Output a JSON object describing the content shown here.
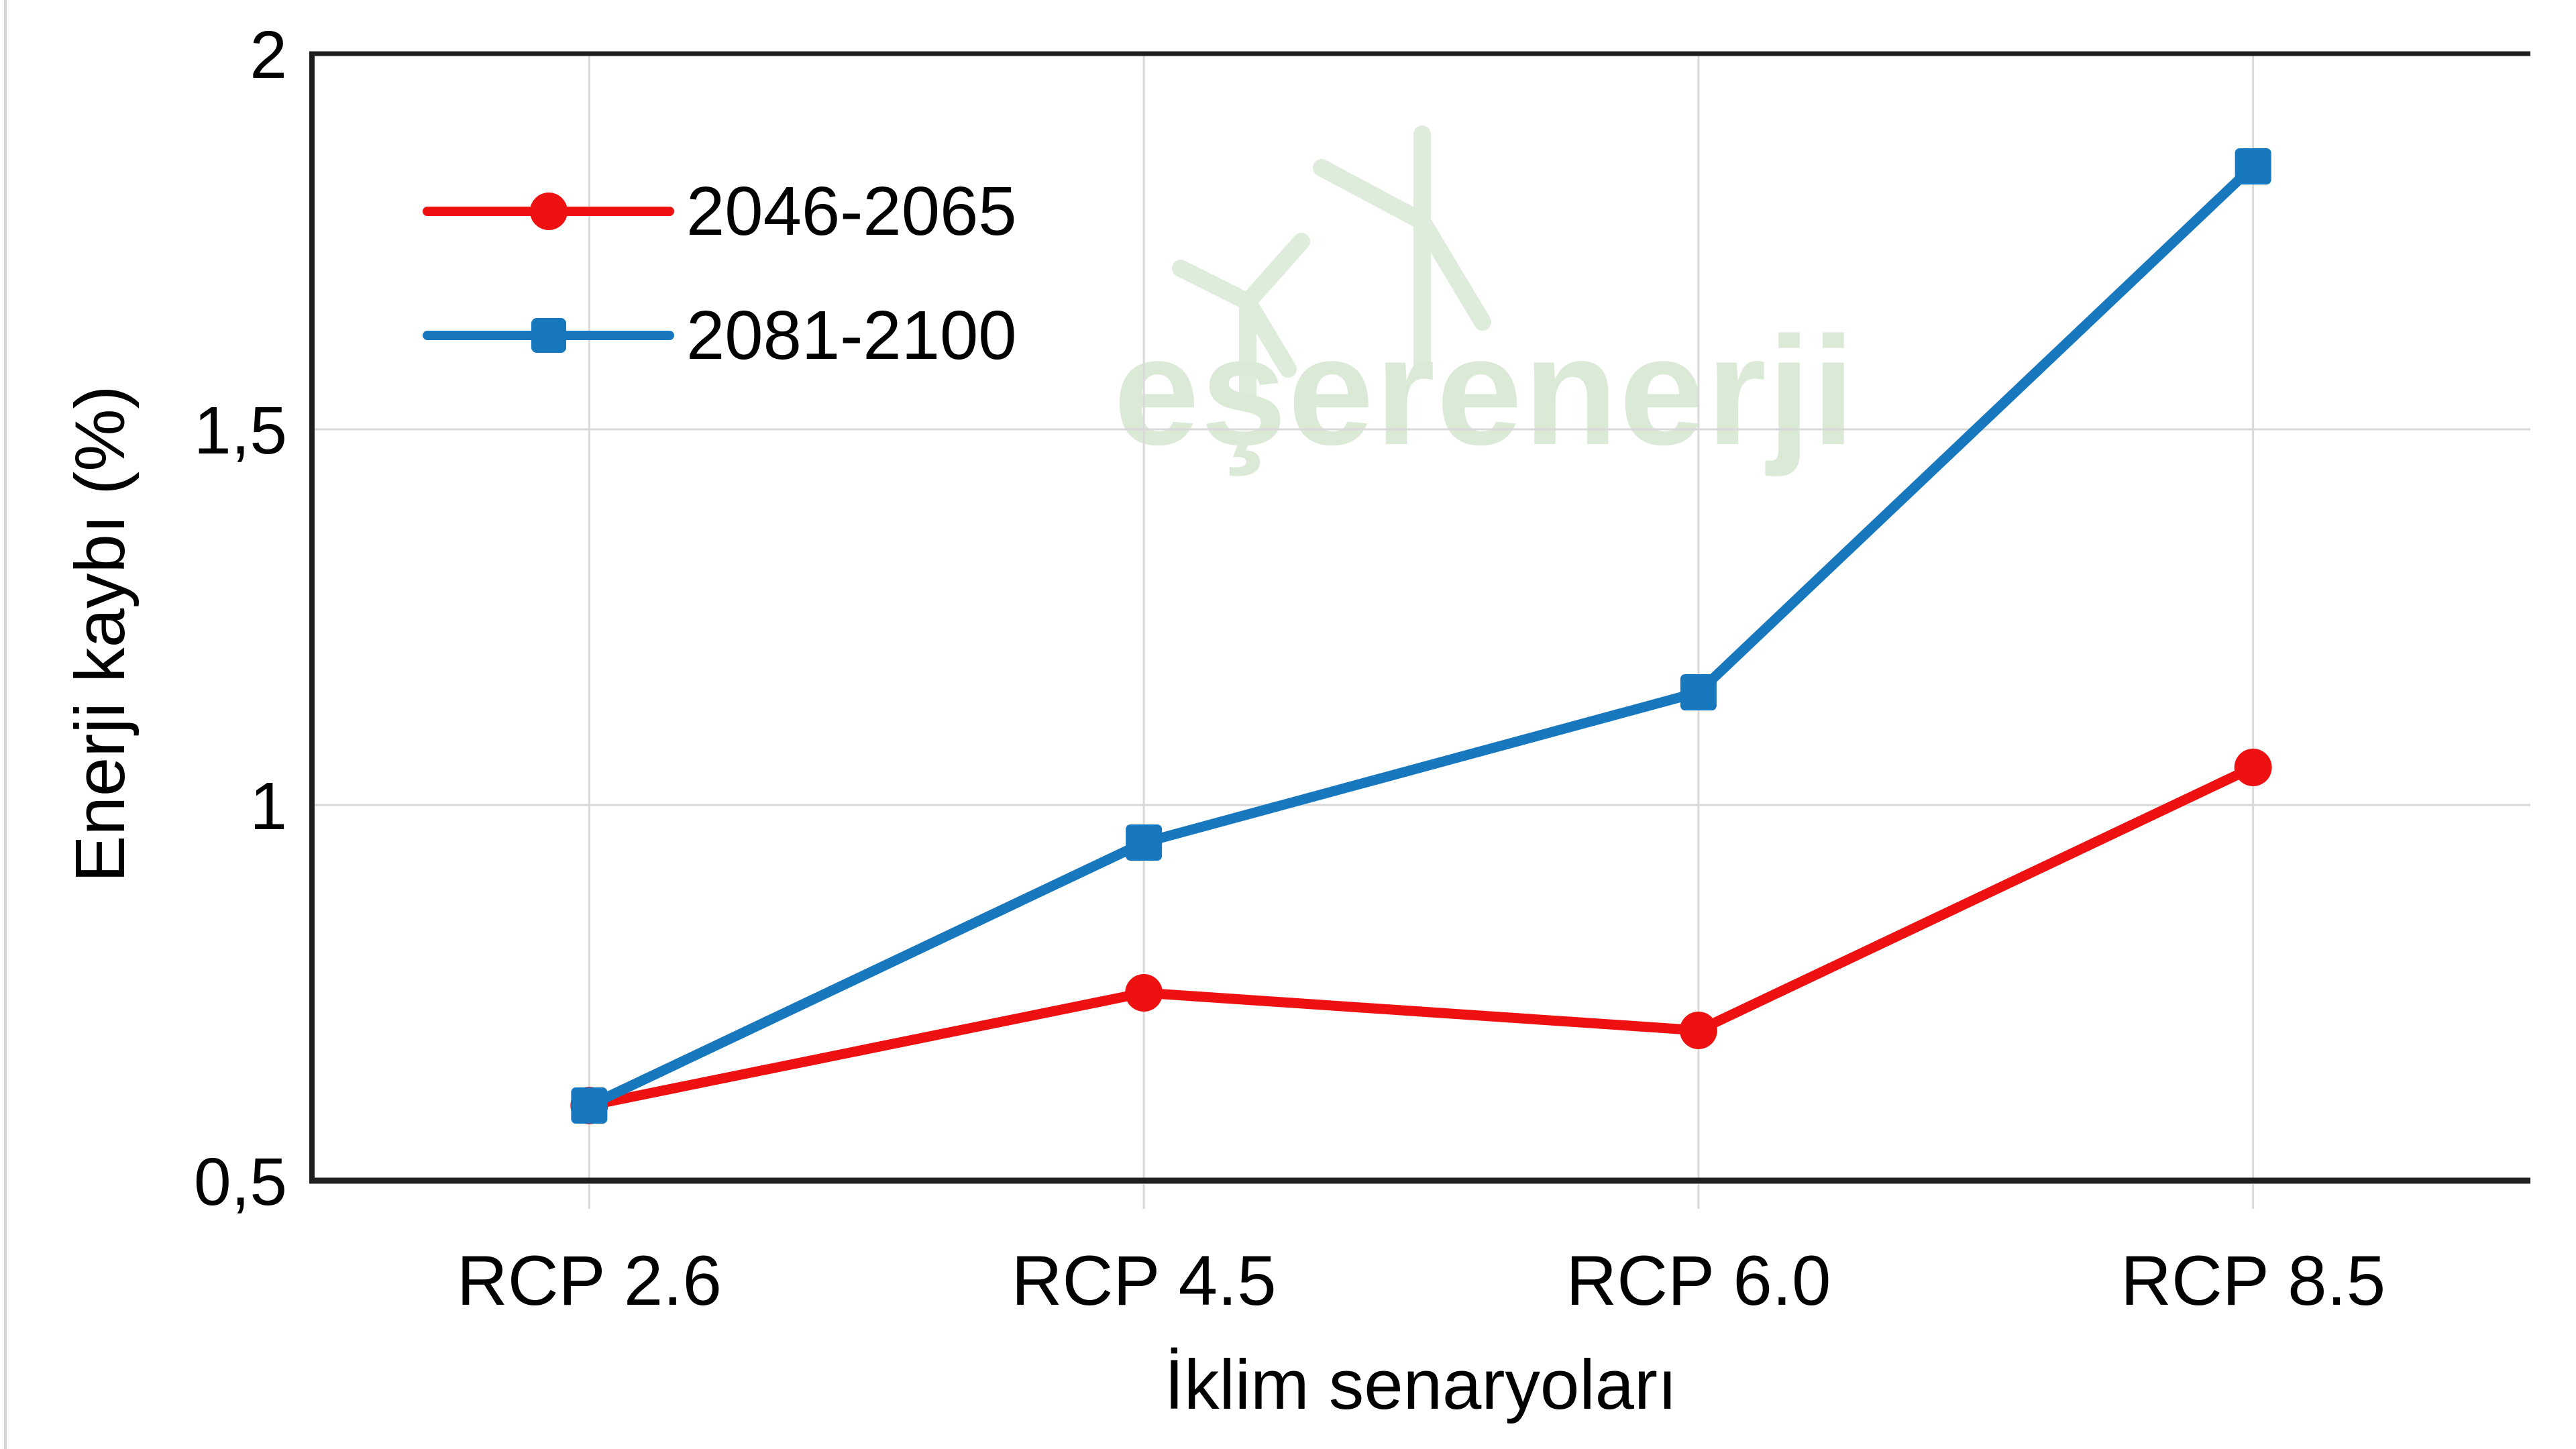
{
  "watermark": {
    "text": "eşerenerji",
    "color": "#cfe4ca"
  },
  "chart_data": {
    "type": "line",
    "title": "",
    "categories": [
      "RCP 2.6",
      "RCP 4.5",
      "RCP 6.0",
      "RCP 8.5"
    ],
    "series": [
      {
        "name": "2046-2065",
        "color": "#ee1111",
        "marker": "circle",
        "values": [
          0.6,
          0.75,
          0.7,
          1.05
        ]
      },
      {
        "name": "2081-2100",
        "color": "#1878be",
        "marker": "square",
        "values": [
          0.6,
          0.95,
          1.15,
          1.85
        ]
      }
    ],
    "xlabel": "İklim senaryoları",
    "ylabel": "Enerji kaybı (%)",
    "ylim": [
      0.5,
      2
    ],
    "y_step": 0.5,
    "y_tick_labels": [
      "0,5",
      "1",
      "1,5",
      "2"
    ],
    "decimal_separator": ",",
    "grid": true,
    "gridline_color": "#d9d9d9",
    "axis_color": "#1f1f1f",
    "legend_position": "top-left-inside"
  }
}
